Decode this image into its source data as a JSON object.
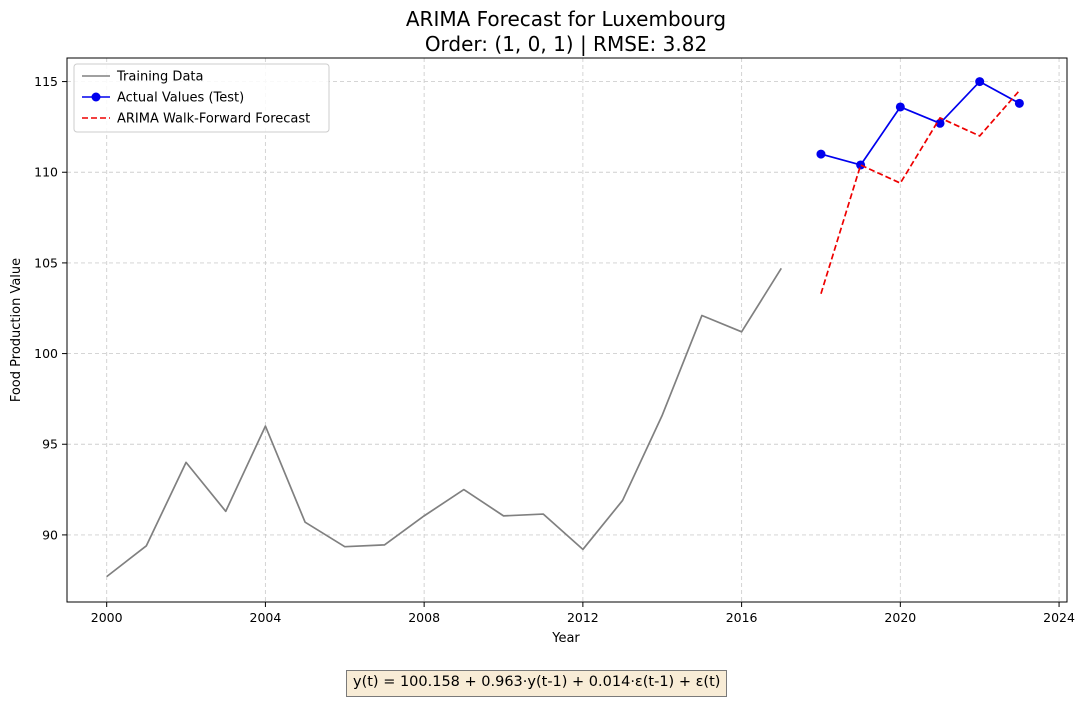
{
  "chart_data": {
    "type": "line",
    "title": [
      "ARIMA Forecast for Luxembourg",
      "Order: (1, 0, 1) | RMSE: 3.82"
    ],
    "xlabel": "Year",
    "ylabel": "Food Production Value",
    "xlim": [
      1999,
      2024.2
    ],
    "ylim": [
      86.3,
      116.3
    ],
    "xticks": [
      2000,
      2004,
      2008,
      2012,
      2016,
      2020,
      2024
    ],
    "yticks": [
      90,
      95,
      100,
      105,
      110,
      115
    ],
    "grid": true,
    "legend_position": "upper-left",
    "series": [
      {
        "name": "Training Data",
        "color": "#808080",
        "style": "solid",
        "marker": false,
        "x": [
          2000,
          2001,
          2002,
          2003,
          2004,
          2005,
          2006,
          2007,
          2008,
          2009,
          2010,
          2011,
          2012,
          2013,
          2014,
          2015,
          2016,
          2017
        ],
        "y": [
          87.7,
          89.4,
          94.0,
          91.3,
          96.0,
          90.7,
          89.35,
          89.45,
          91.05,
          92.5,
          91.05,
          91.15,
          89.2,
          91.9,
          96.6,
          102.1,
          101.2,
          104.7
        ]
      },
      {
        "name": "Actual Values (Test)",
        "color": "#0000ee",
        "style": "solid",
        "marker": true,
        "x": [
          2018,
          2019,
          2020,
          2021,
          2022,
          2023
        ],
        "y": [
          111.0,
          110.4,
          113.6,
          112.7,
          115.0,
          113.8
        ]
      },
      {
        "name": "ARIMA Walk-Forward Forecast",
        "color": "#ee0000",
        "style": "dashed",
        "marker": false,
        "x": [
          2018,
          2019,
          2020,
          2021,
          2022,
          2023
        ],
        "y": [
          103.3,
          110.4,
          109.4,
          113.0,
          112.0,
          114.5
        ]
      }
    ],
    "annotation": "y(t) = 100.158 + 0.963·y(t-1) + 0.014·ε(t-1) + ε(t)"
  }
}
